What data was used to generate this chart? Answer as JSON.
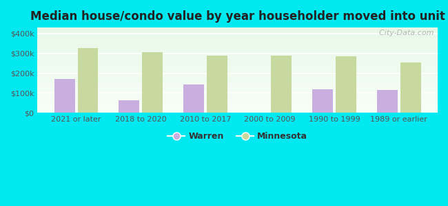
{
  "title": "Median house/condo value by year householder moved into unit",
  "categories": [
    "2021 or later",
    "2018 to 2020",
    "2010 to 2017",
    "2000 to 2009",
    "1990 to 1999",
    "1989 or earlier"
  ],
  "warren_values": [
    170000,
    62000,
    142000,
    0,
    118000,
    115000
  ],
  "minnesota_values": [
    325000,
    305000,
    290000,
    290000,
    285000,
    253000
  ],
  "warren_color": "#c9aee0",
  "minnesota_color": "#c8d9a0",
  "background_color": "#00e8f0",
  "plot_bg_top": "#e8f8e8",
  "plot_bg_bottom": "#f8fff8",
  "yticks": [
    0,
    100000,
    200000,
    300000,
    400000
  ],
  "ytick_labels": [
    "$0",
    "$100k",
    "$200k",
    "$300k",
    "$400k"
  ],
  "ylim": [
    0,
    430000
  ],
  "bar_width": 0.32,
  "watermark": "  City-Data.com",
  "legend_warren": "Warren",
  "legend_minnesota": "Minnesota",
  "title_fontsize": 12,
  "tick_fontsize": 8,
  "legend_fontsize": 9
}
